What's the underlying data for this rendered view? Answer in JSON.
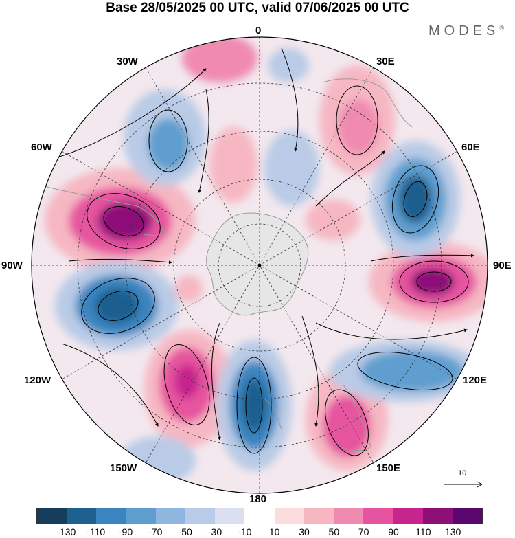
{
  "title": "Base 28/05/2025 00 UTC, valid 07/06/2025 00 UTC",
  "brand": "MODES",
  "brand_mark": "®",
  "longitude_labels": {
    "n0": "0",
    "n30e": "30E",
    "n60e": "60E",
    "n90e": "90E",
    "n120e": "120E",
    "n150e": "150E",
    "n180": "180",
    "n150w": "150W",
    "n120w": "120W",
    "n90w": "90W",
    "n60w": "60W",
    "n30w": "30W"
  },
  "reference_vector": "10",
  "colorbar": {
    "colors": [
      "#173d5c",
      "#1d5f8f",
      "#3a85c0",
      "#5e9ecf",
      "#8fb6de",
      "#b9cbe6",
      "#dcdff0",
      "#ffffff",
      "#fbdcdf",
      "#f6b7c3",
      "#f08ab0",
      "#e6549f",
      "#c8248e",
      "#8e0f78",
      "#5a0770"
    ],
    "tick_labels": [
      "-130",
      "-110",
      "-90",
      "-70",
      "-50",
      "-30",
      "-10",
      "10",
      "30",
      "50",
      "70",
      "90",
      "110",
      "130"
    ]
  },
  "colors": {
    "land": "#e6e6e6",
    "land_outline": "#9a9a9a",
    "grid": "#333333"
  }
}
